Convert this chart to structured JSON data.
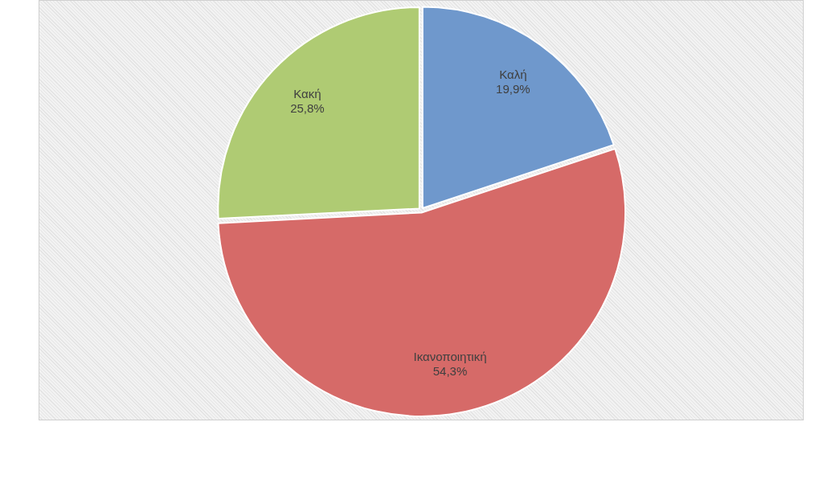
{
  "chart_data": {
    "type": "pie",
    "categories": [
      "Καλή",
      "Ικανοποιητική",
      "Κακή"
    ],
    "values": [
      19.9,
      54.3,
      25.8
    ],
    "value_labels": [
      "19,9%",
      "54,3%",
      "25,8%"
    ],
    "colors": [
      "#6f98cc",
      "#d66a68",
      "#afcb73"
    ],
    "legend": false
  }
}
